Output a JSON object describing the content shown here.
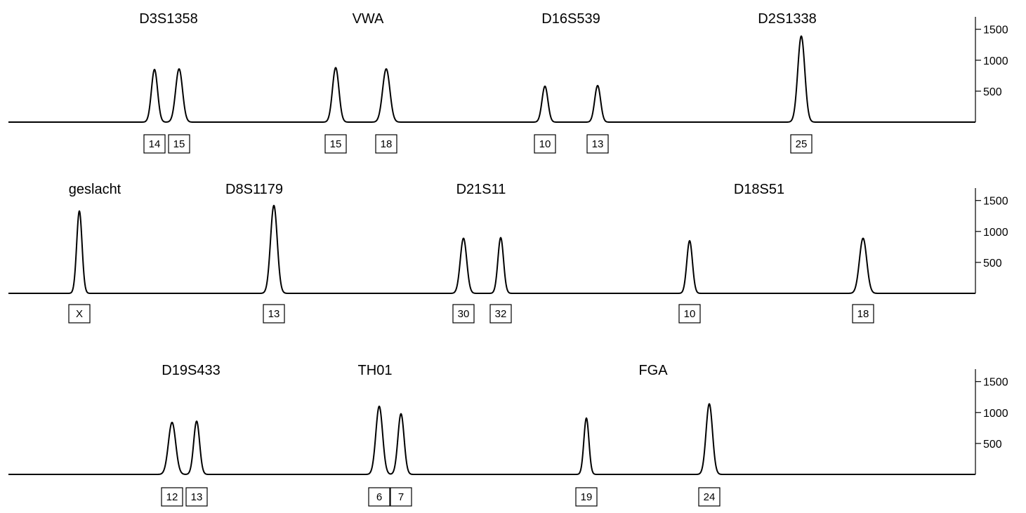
{
  "chart_data": [
    {
      "type": "line",
      "panel": 1,
      "ylim": [
        0,
        1700
      ],
      "yticks": [
        500,
        1000,
        1500
      ],
      "loci": [
        {
          "name": "D3S1358",
          "alleles": [
            {
              "label": "14",
              "height": 850
            },
            {
              "label": "15",
              "height": 860
            }
          ]
        },
        {
          "name": "VWA",
          "alleles": [
            {
              "label": "15",
              "height": 880
            },
            {
              "label": "18",
              "height": 860
            }
          ]
        },
        {
          "name": "D16S539",
          "alleles": [
            {
              "label": "10",
              "height": 580
            },
            {
              "label": "13",
              "height": 590
            }
          ]
        },
        {
          "name": "D2S1338",
          "alleles": [
            {
              "label": "25",
              "height": 1390
            }
          ]
        }
      ]
    },
    {
      "type": "line",
      "panel": 2,
      "ylim": [
        0,
        1700
      ],
      "yticks": [
        500,
        1000,
        1500
      ],
      "loci": [
        {
          "name": "geslacht",
          "alleles": [
            {
              "label": "X",
              "height": 1330
            }
          ]
        },
        {
          "name": "D8S1179",
          "alleles": [
            {
              "label": "13",
              "height": 1420
            }
          ]
        },
        {
          "name": "D21S11",
          "alleles": [
            {
              "label": "30",
              "height": 890
            },
            {
              "label": "32",
              "height": 900
            }
          ]
        },
        {
          "name": "D18S51",
          "alleles": [
            {
              "label": "10",
              "height": 850
            },
            {
              "label": "18",
              "height": 890
            }
          ]
        }
      ]
    },
    {
      "type": "line",
      "panel": 3,
      "ylim": [
        0,
        1700
      ],
      "yticks": [
        500,
        1000,
        1500
      ],
      "loci": [
        {
          "name": "D19S433",
          "alleles": [
            {
              "label": "12",
              "height": 840
            },
            {
              "label": "13",
              "height": 860
            }
          ]
        },
        {
          "name": "TH01",
          "alleles": [
            {
              "label": "6",
              "height": 1100
            },
            {
              "label": "7",
              "height": 980
            }
          ]
        },
        {
          "name": "FGA",
          "alleles": [
            {
              "label": "19",
              "height": 910
            },
            {
              "label": "24",
              "height": 1140
            }
          ]
        }
      ]
    }
  ]
}
